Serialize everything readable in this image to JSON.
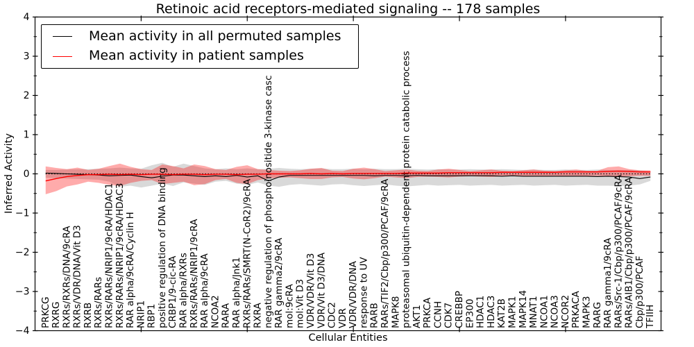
{
  "title": "Retinoic acid receptors-mediated signaling -- 178 samples",
  "legend": {
    "items": [
      {
        "label": "Mean activity in all permuted samples",
        "color": "#000000"
      },
      {
        "label": "Mean activity in patient samples",
        "color": "#ff0000"
      }
    ],
    "position": "upper left"
  },
  "axes": {
    "xlabel": "Cellular Entities",
    "ylabel": "Inferred Activity",
    "ylim": [
      -4,
      4
    ],
    "yticks": [
      -4,
      -3,
      -2,
      -1,
      0,
      1,
      2,
      3,
      4
    ],
    "y_minor_step": 0.5,
    "xticks": [
      10,
      20,
      30,
      40,
      50
    ],
    "grid": false
  },
  "colors": {
    "permuted_line": "#000000",
    "patient_line": "#ff0000",
    "permuted_band": "rgba(0,0,0,0.15)",
    "patient_band": "rgba(255,0,0,0.33)",
    "frame": "#000000",
    "background": "#ffffff"
  },
  "chart_data": {
    "type": "line",
    "title": "Retinoic acid receptors-mediated signaling -- 178 samples",
    "xlabel": "Cellular Entities",
    "ylabel": "Inferred Activity",
    "ylim": [
      -4,
      4
    ],
    "xlim": [
      0,
      59
    ],
    "grid": false,
    "legend_position": "upper left",
    "zero_line": {
      "style": "dotted",
      "color": "#000000",
      "y": 0
    },
    "categories": [
      "PRKCG",
      "RXRG",
      "RXRs/RXRs/DNA/9cRA",
      "RXRs/VDR/DNA/Vit D3",
      "RXRB",
      "RXRs/RARs",
      "RXRs/RARs/NRIP1/9cRA/HDAC1",
      "RXRs/RARs/NRIP1/9cRA/HDAC3",
      "RAR alpha/9cRA/Cyclin H",
      "NRIP1",
      "RBP1",
      "positive regulation of DNA binding",
      "CRBP1/9-cic-RA",
      "RAR alpha/RXRs",
      "RXRs/RARs/NRIP1/9cRA",
      "RAR alpha/9cRA",
      "NCOA2",
      "RARA",
      "RAR alpha/Jnk1",
      "RXRs/RARs/SMRT(N-CoR2)/9cRA",
      "RXRA",
      "negative regulation of phosphoinositide 3-kinase casc",
      "RAR gamma2/9cRA",
      "mol:9cRA",
      "mol:Vit D3",
      "VDR/VDR/Vit D3",
      "VDR/Vit D3/DNA",
      "CDC2",
      "VDR",
      "VDR/VDR/DNA",
      "response to UV",
      "RARB",
      "RARs/TIF2/Cbp/p300/PCAF/9cRA",
      "MAPK8",
      "proteasomal ubiquitin-dependent protein catabolic process",
      "AKT1",
      "PRKCA",
      "CCNH",
      "CDK7",
      "CREBBP",
      "EP300",
      "HDAC1",
      "HDAC3",
      "KAT2B",
      "MAPK1",
      "MAPK14",
      "MNAT1",
      "NCOA1",
      "NCOA3",
      "NCOR2",
      "PRKACA",
      "MAPK3",
      "RARG",
      "RAR gamma1/9cRA",
      "RARs/Src-1/Cbp/p300/PCAF/9cRA",
      "RARs/AIB1/Cbp/p300/PCAF/9cRA",
      "Cbp/p300/PCAF",
      "TFIIH"
    ],
    "series": [
      {
        "name": "Mean activity in all permuted samples",
        "color": "#000000",
        "values": [
          0.02,
          0.01,
          0.0,
          -0.01,
          -0.02,
          -0.03,
          -0.05,
          -0.04,
          -0.03,
          -0.07,
          -0.1,
          -0.06,
          -0.03,
          -0.03,
          -0.05,
          -0.07,
          -0.05,
          -0.07,
          -0.04,
          -0.08,
          -0.05,
          -0.18,
          -0.08,
          -0.04,
          -0.04,
          -0.04,
          -0.04,
          -0.04,
          -0.04,
          -0.04,
          -0.04,
          -0.05,
          -0.04,
          -0.04,
          -0.05,
          -0.04,
          -0.05,
          -0.05,
          -0.05,
          -0.05,
          -0.05,
          -0.05,
          -0.05,
          -0.06,
          -0.05,
          -0.06,
          -0.06,
          -0.06,
          -0.06,
          -0.06,
          -0.06,
          -0.06,
          -0.07,
          -0.06,
          -0.07,
          -0.08,
          -0.12,
          -0.08
        ]
      },
      {
        "name": "Mean activity in patient samples",
        "color": "#ff0000",
        "values": [
          -0.18,
          -0.12,
          -0.07,
          -0.04,
          -0.02,
          -0.02,
          -0.01,
          -0.02,
          -0.01,
          -0.02,
          -0.01,
          -0.01,
          -0.02,
          -0.01,
          -0.01,
          -0.02,
          -0.01,
          -0.01,
          -0.02,
          -0.01,
          -0.01,
          0.0,
          0.0,
          0.0,
          0.0,
          0.01,
          0.0,
          0.01,
          0.0,
          0.01,
          0.01,
          0.01,
          0.01,
          0.01,
          0.02,
          0.02,
          0.02,
          0.02,
          0.03,
          0.03,
          0.03,
          0.03,
          0.03,
          0.04,
          0.04,
          0.04,
          0.04,
          0.04,
          0.04,
          0.05,
          0.05,
          0.05,
          0.05,
          0.06,
          0.07,
          0.06,
          0.05,
          0.05
        ]
      }
    ],
    "bands": [
      {
        "name": "permuted-band",
        "color": "rgba(0,0,0,0.15)",
        "upper": [
          0.1,
          0.1,
          0.11,
          0.12,
          0.12,
          0.13,
          0.14,
          0.16,
          0.14,
          0.13,
          0.22,
          0.28,
          0.18,
          0.26,
          0.2,
          0.14,
          0.12,
          0.14,
          0.12,
          0.14,
          0.12,
          0.13,
          0.15,
          0.13,
          0.12,
          0.13,
          0.14,
          0.12,
          0.12,
          0.13,
          0.12,
          0.13,
          0.12,
          0.12,
          0.13,
          0.12,
          0.11,
          0.12,
          0.11,
          0.11,
          0.12,
          0.11,
          0.11,
          0.12,
          0.11,
          0.1,
          0.11,
          0.1,
          0.1,
          0.11,
          0.1,
          0.1,
          0.11,
          0.1,
          0.1,
          0.1,
          0.09,
          0.06
        ],
        "lower": [
          -0.1,
          -0.11,
          -0.12,
          -0.13,
          -0.14,
          -0.15,
          -0.2,
          -0.33,
          -0.3,
          -0.35,
          -0.3,
          -0.25,
          -0.31,
          -0.22,
          -0.25,
          -0.28,
          -0.2,
          -0.18,
          -0.25,
          -0.28,
          -0.22,
          -0.3,
          -0.33,
          -0.28,
          -0.26,
          -0.28,
          -0.3,
          -0.27,
          -0.26,
          -0.29,
          -0.31,
          -0.29,
          -0.27,
          -0.3,
          -0.32,
          -0.3,
          -0.28,
          -0.3,
          -0.29,
          -0.28,
          -0.3,
          -0.29,
          -0.28,
          -0.3,
          -0.29,
          -0.28,
          -0.3,
          -0.29,
          -0.28,
          -0.3,
          -0.29,
          -0.28,
          -0.3,
          -0.3,
          -0.31,
          -0.3,
          -0.27,
          -0.18
        ]
      },
      {
        "name": "patient-band",
        "color": "rgba(255,0,0,0.33)",
        "upper": [
          0.19,
          0.15,
          0.12,
          0.16,
          0.1,
          0.13,
          0.2,
          0.26,
          0.18,
          0.12,
          0.1,
          0.24,
          0.2,
          0.14,
          0.24,
          0.2,
          0.12,
          0.1,
          0.18,
          0.22,
          0.12,
          0.1,
          0.08,
          0.07,
          0.09,
          0.13,
          0.15,
          0.08,
          0.07,
          0.13,
          0.16,
          0.12,
          0.07,
          0.09,
          0.11,
          0.08,
          0.07,
          0.11,
          0.13,
          0.1,
          0.07,
          0.09,
          0.11,
          0.08,
          0.07,
          0.09,
          0.11,
          0.08,
          0.07,
          0.09,
          0.11,
          0.08,
          0.08,
          0.17,
          0.19,
          0.12,
          0.09,
          0.09
        ],
        "lower": [
          -0.52,
          -0.44,
          -0.32,
          -0.27,
          -0.2,
          -0.23,
          -0.28,
          -0.31,
          -0.23,
          -0.18,
          -0.16,
          -0.26,
          -0.23,
          -0.2,
          -0.29,
          -0.26,
          -0.16,
          -0.13,
          -0.23,
          -0.26,
          -0.16,
          -0.12,
          -0.1,
          -0.09,
          -0.11,
          -0.13,
          -0.13,
          -0.09,
          -0.08,
          -0.12,
          -0.14,
          -0.11,
          -0.07,
          -0.09,
          -0.11,
          -0.08,
          -0.07,
          -0.08,
          -0.09,
          -0.07,
          -0.06,
          -0.07,
          -0.08,
          -0.06,
          -0.05,
          -0.06,
          -0.07,
          -0.06,
          -0.05,
          -0.06,
          -0.07,
          -0.06,
          -0.05,
          -0.07,
          -0.08,
          -0.06,
          -0.05,
          -0.05
        ]
      }
    ]
  }
}
